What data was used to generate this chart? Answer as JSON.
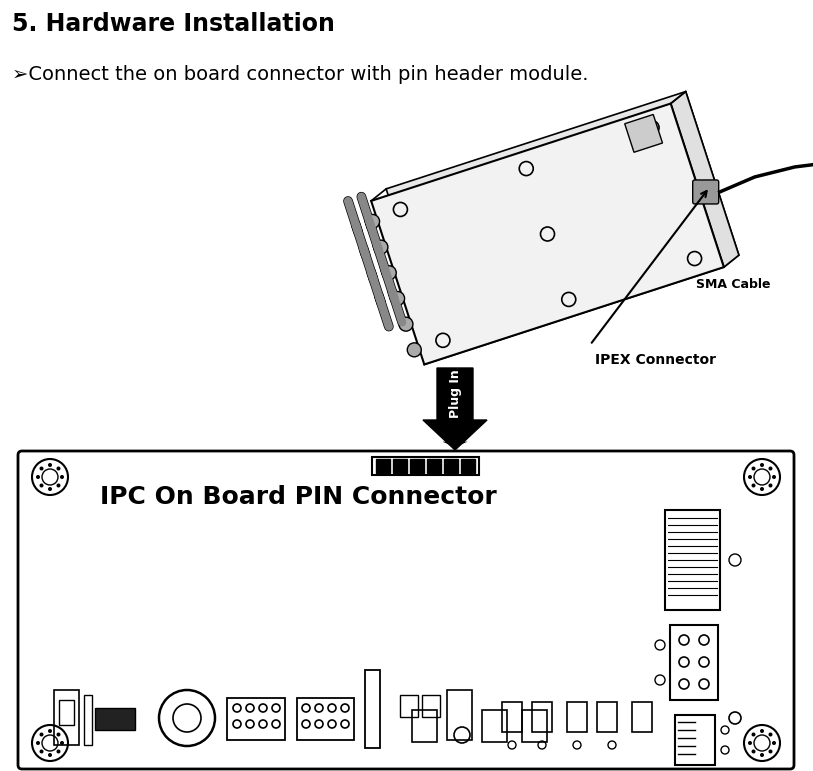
{
  "title": "5. Hardware Installation",
  "subtitle": "➢Connect the on board connector with pin header module.",
  "title_fontsize": 17,
  "subtitle_fontsize": 14,
  "bg_color": "#ffffff",
  "text_color": "#000000",
  "sma_label": "SMA Cable",
  "ipex_label": "IPEX Connector",
  "plug_in_label": "Plug In",
  "board_label": "IPC On Board PIN Connector",
  "board_label_fontsize": 18,
  "fig_width": 8.13,
  "fig_height": 7.71,
  "dpi": 100
}
